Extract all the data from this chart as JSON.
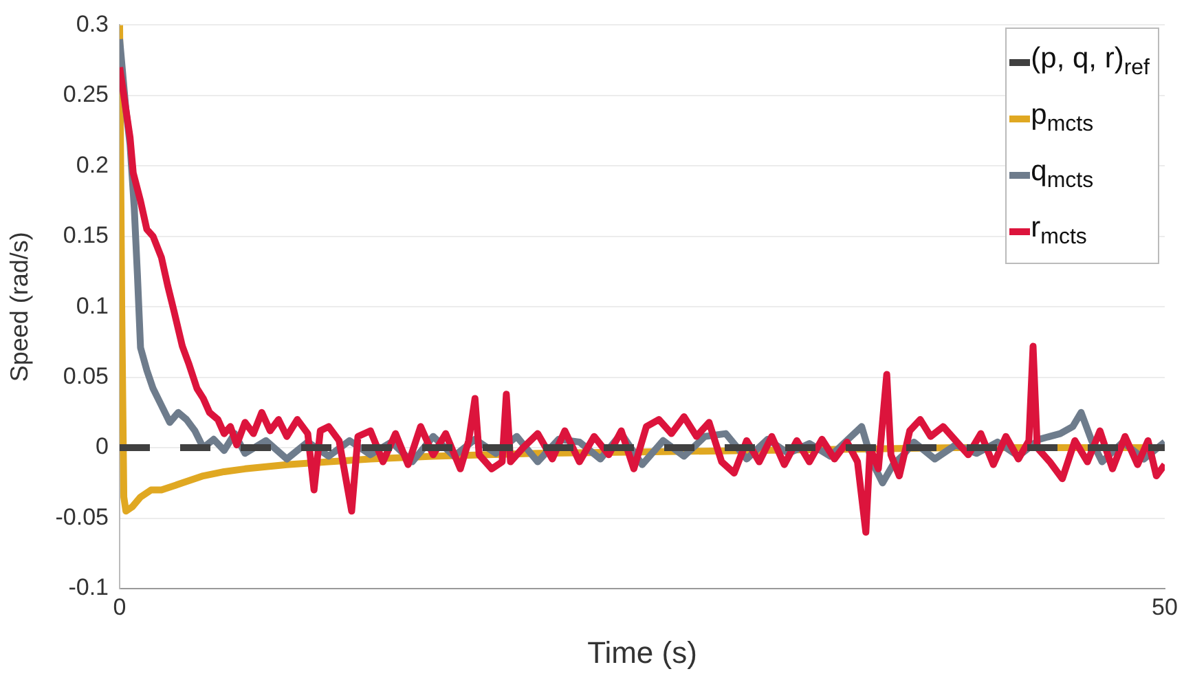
{
  "chart_data": {
    "type": "line",
    "xlabel": "Time (s)",
    "ylabel": "Speed (rad/s)",
    "xlim": [
      0,
      50
    ],
    "xticks": [
      0,
      50
    ],
    "ylim": [
      -0.1,
      0.3
    ],
    "yticks": [
      -0.1,
      -0.05,
      0,
      0.05,
      0.1,
      0.15,
      0.2,
      0.25,
      0.3
    ],
    "grid": "y",
    "legend": "top right",
    "marker": "none",
    "series": [
      {
        "name": "(p, q, r)$_{ref}$",
        "color": "#404040",
        "line_style": "dashed",
        "x": [
          0,
          50
        ],
        "values": [
          0,
          0
        ]
      },
      {
        "name": "p$_{mcts}$",
        "color": "#e0a822",
        "x": [
          0,
          0.1,
          0.2,
          0.3,
          0.6,
          1,
          1.5,
          2,
          3,
          4,
          5,
          6,
          8,
          10,
          12,
          15,
          20,
          25,
          30,
          35,
          40,
          45,
          50
        ],
        "values": [
          0.3,
          0.1,
          -0.035,
          -0.045,
          -0.042,
          -0.035,
          -0.03,
          -0.03,
          -0.025,
          -0.02,
          -0.017,
          -0.015,
          -0.012,
          -0.01,
          -0.008,
          -0.006,
          -0.004,
          -0.003,
          -0.002,
          -0.001,
          0,
          0,
          0
        ]
      },
      {
        "name": "q$_{mcts}$",
        "color": "#6e7c8c",
        "x": [
          0,
          0.3,
          0.5,
          0.7,
          0.85,
          1,
          1.3,
          1.6,
          2,
          2.4,
          2.8,
          3.2,
          3.6,
          4,
          4.5,
          5,
          5.5,
          6,
          7,
          8,
          9,
          10,
          11,
          12,
          13,
          14,
          15,
          16,
          17,
          18,
          19,
          20,
          21,
          22,
          23,
          24,
          25,
          26,
          27,
          28,
          29,
          30,
          31,
          32,
          33,
          34,
          35,
          35.5,
          36,
          36.5,
          37,
          37.5,
          38,
          39,
          40,
          41,
          42,
          43,
          44,
          45,
          45.6,
          46,
          46.5,
          47,
          48,
          49,
          50
        ],
        "values": [
          0.29,
          0.24,
          0.215,
          0.17,
          0.123,
          0.071,
          0.055,
          0.042,
          0.03,
          0.018,
          0.025,
          0.02,
          0.012,
          0,
          0.006,
          -0.002,
          0.01,
          -0.004,
          0.005,
          -0.008,
          0.004,
          -0.006,
          0.005,
          -0.005,
          0.004,
          -0.01,
          0.008,
          -0.006,
          0.006,
          -0.004,
          0.008,
          -0.01,
          0.006,
          0.004,
          -0.008,
          0.01,
          -0.012,
          0.005,
          -0.006,
          0.008,
          0.01,
          -0.008,
          0.006,
          -0.004,
          0.003,
          -0.006,
          0.008,
          0.015,
          -0.01,
          -0.025,
          -0.012,
          -0.005,
          0.004,
          -0.008,
          0.002,
          -0.004,
          0.004,
          -0.006,
          0.006,
          0.01,
          0.015,
          0.025,
          0.005,
          -0.01,
          0.004,
          -0.008,
          0.004
        ]
      },
      {
        "name": "r$_{mcts}$",
        "color": "#dc143c",
        "x": [
          0,
          0.3,
          0.5,
          0.65,
          1,
          1.3,
          1.6,
          2,
          2.3,
          2.6,
          3,
          3.3,
          3.7,
          4,
          4.3,
          4.7,
          5,
          5.3,
          5.6,
          6,
          6.4,
          6.8,
          7.2,
          7.6,
          8,
          8.5,
          9,
          9.3,
          9.6,
          10,
          10.5,
          11.1,
          11.4,
          12,
          12.6,
          13.2,
          13.8,
          14.4,
          15,
          15.6,
          16.3,
          16.7,
          17,
          17.2,
          17.8,
          18.3,
          18.5,
          18.7,
          19.3,
          20,
          20.7,
          21.3,
          22,
          22.7,
          23.4,
          24,
          24.6,
          25.2,
          25.8,
          26.4,
          27,
          27.6,
          28.2,
          28.8,
          29.4,
          30,
          30.6,
          31.2,
          31.8,
          32.4,
          33,
          33.6,
          34.2,
          34.8,
          35.3,
          35.7,
          35.9,
          36.3,
          36.7,
          36.9,
          37.3,
          37.8,
          38.3,
          38.8,
          39.4,
          40,
          40.6,
          41.2,
          41.8,
          42.4,
          43,
          43.5,
          43.7,
          43.9,
          44.5,
          45.1,
          45.7,
          46.3,
          46.9,
          47.5,
          48.1,
          48.7,
          49.2,
          49.6,
          50
        ],
        "values": [
          0.27,
          0.24,
          0.22,
          0.195,
          0.175,
          0.155,
          0.15,
          0.135,
          0.115,
          0.097,
          0.072,
          0.06,
          0.042,
          0.035,
          0.025,
          0.02,
          0.01,
          0.015,
          0.002,
          0.018,
          0.01,
          0.025,
          0.012,
          0.02,
          0.008,
          0.02,
          0.01,
          -0.03,
          0.012,
          0.015,
          0.005,
          -0.045,
          0.008,
          0.012,
          -0.01,
          0.01,
          -0.012,
          0.015,
          -0.005,
          0.01,
          -0.015,
          0.005,
          0.035,
          -0.005,
          -0.015,
          -0.01,
          0.038,
          -0.01,
          0,
          0.01,
          -0.008,
          0.012,
          -0.01,
          0.008,
          -0.005,
          0.012,
          -0.015,
          0.015,
          0.02,
          0.01,
          0.022,
          0.008,
          0.018,
          -0.01,
          -0.018,
          0.005,
          -0.01,
          0.008,
          -0.012,
          0.005,
          -0.01,
          0.006,
          -0.008,
          0.004,
          -0.01,
          -0.06,
          0,
          -0.015,
          0.052,
          -0.005,
          -0.02,
          0.012,
          0.02,
          0.008,
          0.015,
          0.005,
          -0.005,
          0.01,
          -0.012,
          0.008,
          -0.008,
          0.005,
          0.072,
          0,
          -0.01,
          -0.022,
          0.005,
          -0.01,
          0.012,
          -0.015,
          0.008,
          -0.012,
          0.005,
          -0.02,
          -0.012
        ]
      }
    ]
  }
}
